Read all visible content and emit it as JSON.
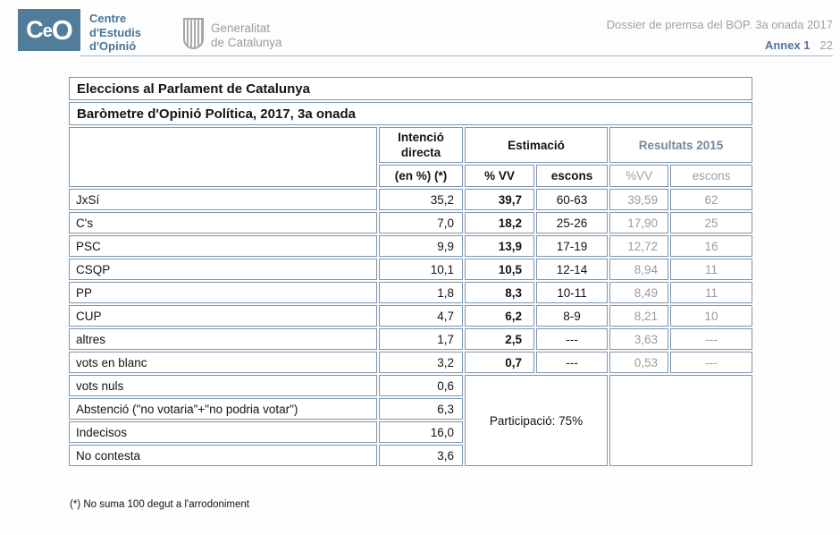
{
  "colors": {
    "brand_slate": "#517c9a",
    "table_border": "#7d96ae",
    "results_gray": "#9b9b9b",
    "results_header": "#76869c",
    "muted_gray": "#99a2ab"
  },
  "header": {
    "logo_text": "CeO",
    "org_name": "Centre\nd'Estudis\nd'Opinió",
    "generalitat_name": "Generalitat\nde Catalunya",
    "dossier_title": "Dossier de premsa del BOP. 3a onada 2017",
    "annex_label": "Annex 1",
    "page_number": "22"
  },
  "table": {
    "title1": "Eleccions al Parlament de Catalunya",
    "title2": "Baròmetre d'Opinió Política, 2017, 3a onada",
    "groups": {
      "intencio": "Intenció directa",
      "estimacio": "Estimació",
      "resultats": "Resultats 2015"
    },
    "subheaders": {
      "intencio": "(en %) (*)",
      "vv": "% VV",
      "escons": "escons",
      "vv2015": "%VV",
      "escons2015": "escons"
    },
    "rows": [
      {
        "label": "JxSí",
        "intencio": "35,2",
        "vv": "39,7",
        "escons": "60-63",
        "vv2015": "39,59",
        "escons2015": "62"
      },
      {
        "label": "C's",
        "intencio": "7,0",
        "vv": "18,2",
        "escons": "25-26",
        "vv2015": "17,90",
        "escons2015": "25"
      },
      {
        "label": "PSC",
        "intencio": "9,9",
        "vv": "13,9",
        "escons": "17-19",
        "vv2015": "12,72",
        "escons2015": "16"
      },
      {
        "label": "CSQP",
        "intencio": "10,1",
        "vv": "10,5",
        "escons": "12-14",
        "vv2015": "8,94",
        "escons2015": "11"
      },
      {
        "label": "PP",
        "intencio": "1,8",
        "vv": "8,3",
        "escons": "10-11",
        "vv2015": "8,49",
        "escons2015": "11"
      },
      {
        "label": "CUP",
        "intencio": "4,7",
        "vv": "6,2",
        "escons": "8-9",
        "vv2015": "8,21",
        "escons2015": "10"
      },
      {
        "label": "altres",
        "intencio": "1,7",
        "vv": "2,5",
        "escons": "---",
        "vv2015": "3,63",
        "escons2015": "---"
      },
      {
        "label": "vots en blanc",
        "intencio": "3,2",
        "vv": "0,7",
        "escons": "---",
        "vv2015": "0,53",
        "escons2015": "---"
      }
    ],
    "bottom_rows": [
      {
        "label": "vots nuls",
        "intencio": "0,6"
      },
      {
        "label": "Abstenció (\"no votaria\"+\"no podria votar\")",
        "intencio": "6,3"
      },
      {
        "label": "Indecisos",
        "intencio": "16,0"
      },
      {
        "label": "No contesta",
        "intencio": "3,6"
      }
    ],
    "participacio": "Participació: 75%",
    "footnote": "(*) No suma 100 degut a l'arrodoniment"
  }
}
